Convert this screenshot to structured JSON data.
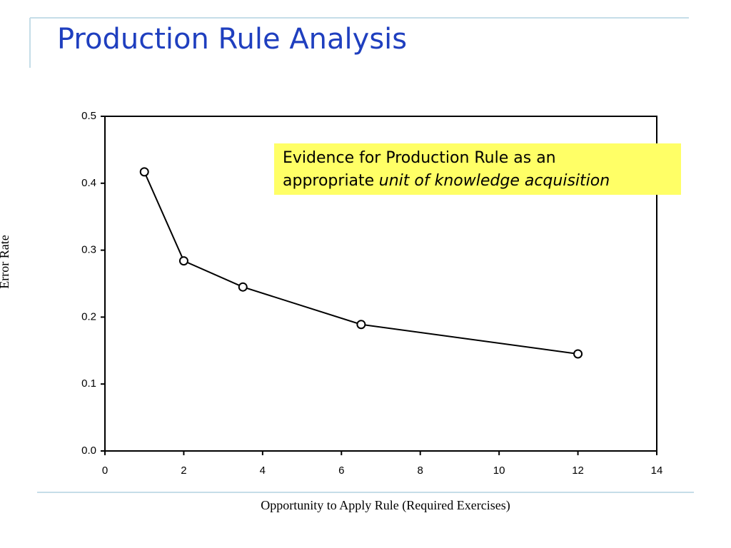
{
  "slide_title": "Production Rule Analysis",
  "chart_data": {
    "type": "line",
    "x": [
      1,
      2,
      3.5,
      6.5,
      12
    ],
    "values": [
      0.417,
      0.284,
      0.245,
      0.189,
      0.145
    ],
    "color": "#000000",
    "xlim": [
      0,
      14
    ],
    "xticks": [
      0,
      2,
      4,
      6,
      8,
      10,
      12,
      14
    ],
    "ylim": [
      0,
      0.5
    ],
    "yticks": [
      {
        "value": 0,
        "label": "0.0"
      },
      0.1,
      0.2,
      0.3,
      0.4,
      0.5
    ],
    "xlabel": "Opportunity to Apply Rule (Required Exercises)",
    "ylabel": "Error Rate",
    "annotation": [
      "Evidence for Production Rule as an",
      "appropriate",
      "unit of knowledge acquisition"
    ]
  }
}
